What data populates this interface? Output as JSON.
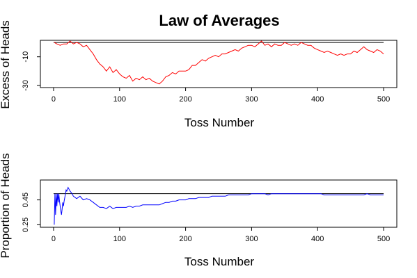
{
  "chart_data": {
    "title": "Law of Averages",
    "panels": [
      {
        "type": "line",
        "ylabel": "Excess of Heads",
        "xlabel": "Toss Number",
        "xlim": [
          -20,
          520
        ],
        "ylim": [
          -31.5,
          1.5
        ],
        "xticks": [
          0,
          100,
          200,
          300,
          400,
          500
        ],
        "yticks": [
          -30,
          -10
        ],
        "reference_line": 0,
        "series": [
          {
            "color": "#ff0000",
            "x": [
              1,
              5,
              10,
              15,
              20,
              25,
              30,
              35,
              40,
              45,
              50,
              55,
              60,
              65,
              70,
              75,
              80,
              85,
              90,
              95,
              100,
              105,
              110,
              115,
              120,
              125,
              130,
              135,
              140,
              145,
              150,
              155,
              160,
              165,
              170,
              175,
              180,
              185,
              190,
              195,
              200,
              205,
              210,
              215,
              220,
              225,
              230,
              235,
              240,
              245,
              250,
              255,
              260,
              265,
              270,
              275,
              280,
              285,
              290,
              295,
              300,
              305,
              310,
              315,
              320,
              325,
              330,
              335,
              340,
              345,
              350,
              355,
              360,
              365,
              370,
              375,
              380,
              385,
              390,
              395,
              400,
              405,
              410,
              415,
              420,
              425,
              430,
              435,
              440,
              445,
              450,
              455,
              460,
              465,
              470,
              475,
              480,
              485,
              490,
              495,
              500
            ],
            "y": [
              0,
              -1,
              -2,
              -1,
              -1,
              1,
              -1,
              0,
              -1,
              -3,
              -2,
              -5,
              -8,
              -12,
              -15,
              -17,
              -20,
              -17,
              -21,
              -19,
              -22,
              -24,
              -25,
              -23,
              -27,
              -25,
              -26,
              -24,
              -26,
              -25,
              -27,
              -28,
              -29,
              -27,
              -24,
              -23,
              -21,
              -22,
              -20,
              -20,
              -20,
              -19,
              -16,
              -16,
              -14,
              -12,
              -13,
              -11,
              -10,
              -9,
              -10,
              -8,
              -8,
              -7,
              -6,
              -5,
              -6,
              -4,
              -3,
              -2,
              -2,
              -3,
              -1,
              1,
              -2,
              -1,
              -3,
              -1,
              -2,
              -2,
              0,
              -1,
              -2,
              -1,
              -2,
              0,
              -1,
              -2,
              -2,
              -4,
              -5,
              -6,
              -7,
              -6,
              -7,
              -8,
              -9,
              -8,
              -9,
              -8,
              -8,
              -6,
              -7,
              -5,
              -3,
              -5,
              -6,
              -7,
              -5,
              -6,
              -8
            ]
          }
        ]
      },
      {
        "type": "line",
        "ylabel": "Proportion of Heads",
        "xlabel": "Toss Number",
        "xlim": [
          -20,
          520
        ],
        "ylim": [
          0.23,
          0.61
        ],
        "xticks": [
          0,
          100,
          200,
          300,
          400,
          500
        ],
        "yticks": [
          0.25,
          0.45
        ],
        "reference_line": 0.5,
        "series": [
          {
            "color": "#0000ff",
            "x": [
              1,
              2,
              3,
              4,
              5,
              6,
              7,
              8,
              9,
              10,
              11,
              12,
              13,
              14,
              15,
              16,
              17,
              18,
              19,
              20,
              22,
              25,
              28,
              30,
              35,
              40,
              45,
              50,
              55,
              60,
              65,
              70,
              75,
              80,
              85,
              90,
              95,
              100,
              105,
              110,
              115,
              120,
              125,
              130,
              135,
              140,
              145,
              150,
              155,
              160,
              165,
              170,
              175,
              180,
              185,
              190,
              195,
              200,
              205,
              210,
              215,
              220,
              225,
              230,
              235,
              240,
              245,
              250,
              255,
              260,
              265,
              270,
              275,
              280,
              285,
              290,
              295,
              300,
              305,
              310,
              315,
              320,
              325,
              330,
              335,
              340,
              345,
              350,
              355,
              360,
              365,
              370,
              375,
              380,
              385,
              390,
              395,
              400,
              405,
              410,
              415,
              420,
              425,
              430,
              435,
              440,
              445,
              450,
              455,
              460,
              465,
              470,
              475,
              480,
              485,
              490,
              495,
              500
            ],
            "y": [
              0.25,
              0.5,
              0.33,
              0.5,
              0.4,
              0.5,
              0.43,
              0.5,
              0.44,
              0.4,
              0.36,
              0.33,
              0.38,
              0.43,
              0.4,
              0.44,
              0.47,
              0.5,
              0.53,
              0.52,
              0.55,
              0.52,
              0.5,
              0.48,
              0.46,
              0.48,
              0.45,
              0.46,
              0.45,
              0.43,
              0.41,
              0.39,
              0.39,
              0.38,
              0.4,
              0.38,
              0.39,
              0.39,
              0.39,
              0.39,
              0.4,
              0.39,
              0.4,
              0.4,
              0.41,
              0.41,
              0.41,
              0.41,
              0.41,
              0.41,
              0.42,
              0.43,
              0.43,
              0.44,
              0.44,
              0.45,
              0.45,
              0.45,
              0.46,
              0.46,
              0.46,
              0.47,
              0.47,
              0.47,
              0.47,
              0.48,
              0.48,
              0.48,
              0.48,
              0.48,
              0.49,
              0.49,
              0.49,
              0.49,
              0.49,
              0.49,
              0.49,
              0.5,
              0.5,
              0.5,
              0.5,
              0.5,
              0.49,
              0.5,
              0.5,
              0.5,
              0.5,
              0.5,
              0.5,
              0.5,
              0.5,
              0.5,
              0.5,
              0.5,
              0.5,
              0.5,
              0.5,
              0.5,
              0.5,
              0.49,
              0.49,
              0.49,
              0.49,
              0.49,
              0.49,
              0.49,
              0.49,
              0.49,
              0.49,
              0.49,
              0.49,
              0.49,
              0.5,
              0.49,
              0.49,
              0.49,
              0.49,
              0.49
            ]
          }
        ]
      }
    ]
  }
}
